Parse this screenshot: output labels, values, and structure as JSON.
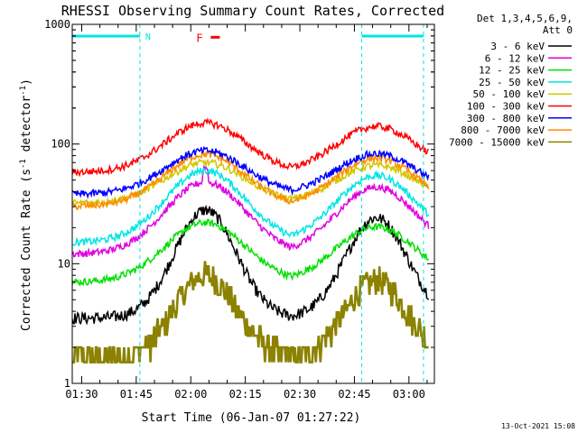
{
  "chart_data": {
    "type": "line",
    "title": "RHESSI Observing Summary Count Rates, Corrected",
    "xlabel": "Start Time (06-Jan-07 01:27:22)",
    "ylabel": "Corrected Count Rate (s⁻¹ detector⁻¹)",
    "ylabel_main": "Corrected Count Rate (s",
    "ylabel_sup1": "-1",
    "ylabel_mid": " detector",
    "ylabel_sup2": "-1",
    "ylabel_end": ")",
    "yscale": "log",
    "ylim": [
      1,
      1000
    ],
    "xlim_minutes_after_0130": [
      -2.6,
      97
    ],
    "x_ticks": [
      "01:30",
      "01:45",
      "02:00",
      "02:15",
      "02:30",
      "02:45",
      "03:00"
    ],
    "y_ticks": [
      "1",
      "10",
      "100",
      "1000"
    ],
    "legend_header": [
      "Det 1,3,4,5,6,9,",
      "Att 0"
    ],
    "legend_position": "outside-right",
    "markers": [
      {
        "label": "N",
        "color": "#00e5e5"
      },
      {
        "label": "F",
        "color": "#ff0000"
      }
    ],
    "night_intervals": [
      {
        "start": "01:27",
        "end": "01:46"
      },
      {
        "start": "02:47",
        "end": "03:04"
      }
    ],
    "flare_bar": {
      "start": "02:02",
      "end": "02:05",
      "value": 780
    },
    "peak_times": [
      "02:04",
      "02:51"
    ],
    "series": [
      {
        "name": "3 - 6 keV",
        "color": "#000000",
        "baseline": 3.5,
        "peak": 28
      },
      {
        "name": "6 - 12 keV",
        "color": "#e000e0",
        "baseline": 12,
        "peak": 48
      },
      {
        "name": "12 - 25 keV",
        "color": "#00e000",
        "baseline": 7,
        "peak": 22
      },
      {
        "name": "25 - 50 keV",
        "color": "#00e5e5",
        "baseline": 15,
        "peak": 60
      },
      {
        "name": "50 - 100 keV",
        "color": "#d2c800",
        "baseline": 32,
        "peak": 70
      },
      {
        "name": "100 - 300 keV",
        "color": "#ff0000",
        "baseline": 58,
        "peak": 150
      },
      {
        "name": "300 - 800 keV",
        "color": "#0000ff",
        "baseline": 38,
        "peak": 88
      },
      {
        "name": "800 - 7000 keV",
        "color": "#ff8c00",
        "baseline": 30,
        "peak": 82
      },
      {
        "name": "7000 - 15000 keV",
        "color": "#8c8200",
        "baseline": 1.6,
        "peak": 8
      }
    ]
  },
  "footer": {
    "timestamp": "13-Oct-2021 15:08"
  }
}
